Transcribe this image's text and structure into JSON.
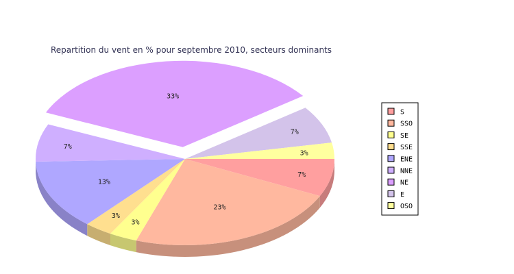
{
  "chart_data": {
    "type": "pie",
    "title": "Repartition du vent en % pour septembre 2010, secteurs dominants",
    "slices": [
      {
        "name": "S",
        "value": 7,
        "label": "7%",
        "color": "#ff9f9f"
      },
      {
        "name": "SSO",
        "value": 23,
        "label": "23%",
        "color": "#ffb89f"
      },
      {
        "name": "SE",
        "value": 3,
        "label": "3%",
        "color": "#ffff8f"
      },
      {
        "name": "SSE",
        "value": 3,
        "label": "3%",
        "color": "#ffdf8f"
      },
      {
        "name": "ENE",
        "value": 13,
        "label": "13%",
        "color": "#afa7ff"
      },
      {
        "name": "NNE",
        "value": 7,
        "label": "7%",
        "color": "#cfafff"
      },
      {
        "name": "NE",
        "value": 33,
        "label": "33%",
        "color": "#dc9fff"
      },
      {
        "name": "E",
        "value": 7,
        "label": "7%",
        "color": "#d3c3ea"
      },
      {
        "name": "OSO",
        "value": 3,
        "label": "3%",
        "color": "#ffff9f"
      }
    ],
    "exploded": "NE",
    "legend_position": "right"
  }
}
